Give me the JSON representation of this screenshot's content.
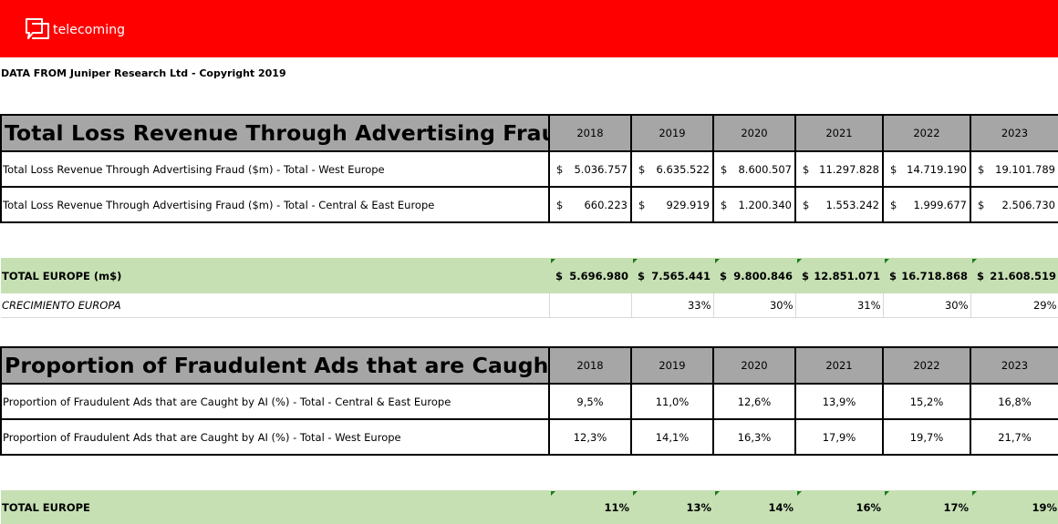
{
  "brand": {
    "name": "telecoming",
    "banner_color": "#ff0000"
  },
  "source_note": "DATA FROM Juniper Research Ltd - Copyright 2019",
  "colors": {
    "header_gray": "#a6a6a6",
    "total_green": "#c6e0b4"
  },
  "table1": {
    "title": "Total Loss Revenue Through Advertising Fraud",
    "years": [
      "2018",
      "2019",
      "2020",
      "2021",
      "2022",
      "2023"
    ],
    "rows": [
      {
        "label": "Total Loss Revenue Through Advertising Fraud ($m) - Total - West Europe",
        "values": [
          "5.036.757",
          "6.635.522",
          "8.600.507",
          "11.297.828",
          "14.719.190",
          "19.101.789"
        ]
      },
      {
        "label": "Total Loss Revenue Through Advertising Fraud ($m) - Total - Central & East Europe",
        "values": [
          "660.223",
          "929.919",
          "1.200.340",
          "1.553.242",
          "1.999.677",
          "2.506.730"
        ]
      }
    ],
    "currency_symbol": "$",
    "total": {
      "label": "TOTAL EUROPE (m$)",
      "values": [
        "5.696.980",
        "7.565.441",
        "9.800.846",
        "12.851.071",
        "16.718.868",
        "21.608.519"
      ]
    },
    "growth": {
      "label": "CRECIMIENTO EUROPA",
      "values": [
        "",
        "33%",
        "30%",
        "31%",
        "30%",
        "29%"
      ]
    }
  },
  "table2": {
    "title": "Proportion of Fraudulent Ads that are Caught by",
    "years": [
      "2018",
      "2019",
      "2020",
      "2021",
      "2022",
      "2023"
    ],
    "rows": [
      {
        "label": "Proportion of Fraudulent Ads that are Caught by AI (%) - Total - Central & East Europe",
        "values": [
          "9,5%",
          "11,0%",
          "12,6%",
          "13,9%",
          "15,2%",
          "16,8%"
        ]
      },
      {
        "label": "Proportion of Fraudulent Ads that are Caught by AI (%) - Total - West Europe",
        "values": [
          "12,3%",
          "14,1%",
          "16,3%",
          "17,9%",
          "19,7%",
          "21,7%"
        ]
      }
    ],
    "total": {
      "label": "TOTAL EUROPE",
      "values": [
        "11%",
        "13%",
        "14%",
        "16%",
        "17%",
        "19%"
      ]
    }
  }
}
